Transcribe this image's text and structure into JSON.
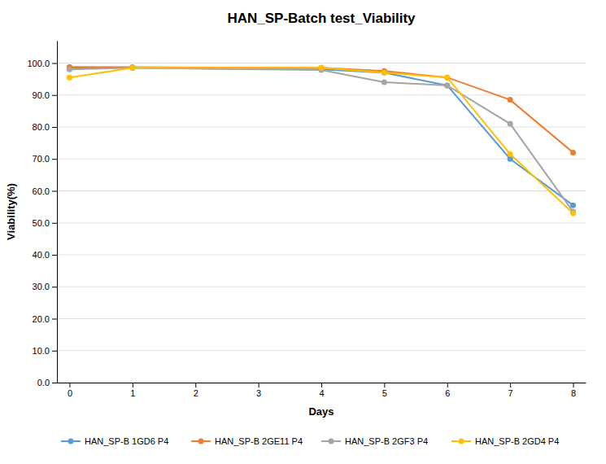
{
  "chart_data": {
    "type": "line",
    "title": "HAN_SP-Batch test_Viability",
    "xlabel": "Days",
    "ylabel": "Viability(%)",
    "xlim": [
      -0.2,
      8.2
    ],
    "ylim": [
      0.0,
      107.0
    ],
    "xticks": [
      0,
      1,
      2,
      3,
      4,
      5,
      6,
      7,
      8
    ],
    "yticks": [
      {
        "value": 0.0,
        "label": "0.0"
      },
      {
        "value": 10.0,
        "label": "10.0"
      },
      {
        "value": 20.0,
        "label": "20.0"
      },
      {
        "value": 30.0,
        "label": "30.0"
      },
      {
        "value": 40.0,
        "label": "40.0"
      },
      {
        "value": 50.0,
        "label": "50.0"
      },
      {
        "value": 60.0,
        "label": "60.0"
      },
      {
        "value": 70.0,
        "label": "70.0"
      },
      {
        "value": 80.0,
        "label": "80.0"
      },
      {
        "value": 90.0,
        "label": "90.0"
      },
      {
        "value": 100.0,
        "label": "100.0"
      }
    ],
    "grid": true,
    "legend": "bottom",
    "x": [
      0,
      1,
      4,
      5,
      6,
      7,
      8
    ],
    "series": [
      {
        "name": "HAN_SP-B 1GD6 P4",
        "color": "#5B9BD5",
        "marker": "circle",
        "values": [
          98.5,
          98.5,
          98.0,
          97.0,
          93.0,
          70.0,
          55.5
        ]
      },
      {
        "name": "HAN_SP-B 2GE11 P4",
        "color": "#ED7D31",
        "marker": "circle",
        "values": [
          98.8,
          98.7,
          98.5,
          97.5,
          95.5,
          88.5,
          72.0
        ]
      },
      {
        "name": "HAN_SP-B 2GF3 P4",
        "color": "#A5A5A5",
        "marker": "circle",
        "values": [
          98.0,
          98.5,
          97.8,
          94.0,
          93.0,
          81.0,
          53.5
        ]
      },
      {
        "name": "HAN_SP-B 2GD4 P4",
        "color": "#FFC000",
        "marker": "circle",
        "values": [
          95.5,
          98.5,
          98.5,
          97.0,
          95.5,
          71.5,
          53.0
        ]
      }
    ]
  }
}
